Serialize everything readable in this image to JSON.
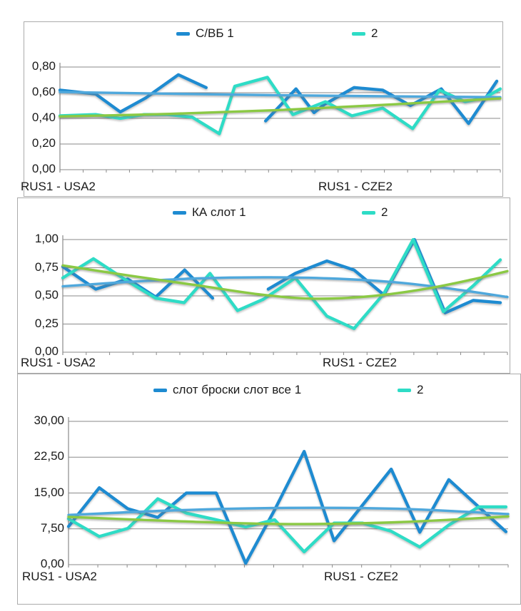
{
  "page": {
    "background": "#ffffff"
  },
  "colors": {
    "series1_blue": "#1E8BD1",
    "series2_cyan": "#2EDCC6",
    "trend1_lightblue": "#4FA8DC",
    "trend2_green": "#8BC944",
    "gridline": "#8A8A8A",
    "frame": "#ABABAB",
    "text": "#1A1A1A"
  },
  "chart_data": [
    {
      "type": "line",
      "legend": [
        "С/ВБ 1",
        "2"
      ],
      "x_group_labels": [
        "RUS1 - USA2",
        "RUS1 - CZE2"
      ],
      "y_ticks": [
        0,
        0.2,
        0.4,
        0.6,
        0.8
      ],
      "y_tick_labels": [
        "0,00",
        "0,20",
        "0,40",
        "0,60",
        "0,80"
      ],
      "ylim": [
        0,
        0.8
      ],
      "x_unit": "percent_of_plot_width",
      "grid": "horizontal",
      "legend_position": "top",
      "series": [
        {
          "name": "С/ВБ 1",
          "role": "data",
          "color_key": "series1_blue",
          "paths": [
            [
              [
                0,
                0.62
              ],
              [
                8.1,
                0.59
              ],
              [
                13.7,
                0.45
              ],
              [
                19.5,
                0.56
              ],
              [
                26.9,
                0.74
              ],
              [
                33.2,
                0.64
              ]
            ],
            [
              [
                46.7,
                0.38
              ],
              [
                53.6,
                0.63
              ],
              [
                57.7,
                0.445
              ],
              [
                60.1,
                0.51
              ],
              [
                66.8,
                0.64
              ],
              [
                73.3,
                0.62
              ],
              [
                79.6,
                0.5
              ],
              [
                86.6,
                0.63
              ],
              [
                92.8,
                0.36
              ],
              [
                99.2,
                0.69
              ]
            ]
          ]
        },
        {
          "name": "2",
          "role": "data",
          "color_key": "series2_cyan",
          "paths": [
            [
              [
                0,
                0.42
              ],
              [
                8.1,
                0.43
              ],
              [
                13.7,
                0.4
              ],
              [
                19.1,
                0.43
              ],
              [
                24.4,
                0.43
              ],
              [
                30.0,
                0.41
              ],
              [
                36.2,
                0.28
              ],
              [
                39.7,
                0.65
              ],
              [
                47.1,
                0.72
              ],
              [
                52.9,
                0.43
              ],
              [
                60.3,
                0.53
              ],
              [
                66.3,
                0.42
              ],
              [
                73.3,
                0.48
              ],
              [
                80.1,
                0.32
              ],
              [
                86.2,
                0.62
              ],
              [
                92.0,
                0.53
              ],
              [
                96.4,
                0.56
              ],
              [
                100,
                0.63
              ]
            ]
          ]
        },
        {
          "name": "trend-of-1",
          "role": "trend",
          "color_key": "trend1_lightblue",
          "paths": [
            [
              [
                0,
                0.605
              ],
              [
                25,
                0.592
              ],
              [
                50,
                0.58
              ],
              [
                75,
                0.572
              ],
              [
                100,
                0.565
              ]
            ]
          ]
        },
        {
          "name": "trend-of-2",
          "role": "trend",
          "color_key": "trend2_green",
          "paths": [
            [
              [
                0,
                0.415
              ],
              [
                25,
                0.435
              ],
              [
                50,
                0.465
              ],
              [
                75,
                0.508
              ],
              [
                100,
                0.555
              ]
            ]
          ]
        }
      ]
    },
    {
      "type": "line",
      "legend": [
        "КА слот 1",
        "2"
      ],
      "x_group_labels": [
        "RUS1 - USA2",
        "RUS1 - CZE2"
      ],
      "y_ticks": [
        0,
        0.25,
        0.5,
        0.75,
        1.0
      ],
      "y_tick_labels": [
        "0,00",
        "0,25",
        "0,50",
        "0,75",
        "1,00"
      ],
      "ylim": [
        0,
        1.0
      ],
      "x_unit": "percent_of_plot_width",
      "grid": "horizontal",
      "legend_position": "top",
      "series": [
        {
          "name": "КА слот 1",
          "role": "data",
          "color_key": "series1_blue",
          "paths": [
            [
              [
                0,
                0.76
              ],
              [
                7.4,
                0.56
              ],
              [
                14.6,
                0.65
              ],
              [
                20.9,
                0.49
              ],
              [
                27.4,
                0.73
              ],
              [
                33.7,
                0.48
              ]
            ],
            [
              [
                46.2,
                0.56
              ],
              [
                52.3,
                0.7
              ],
              [
                59.4,
                0.81
              ],
              [
                65.5,
                0.73
              ],
              [
                72.2,
                0.51
              ],
              [
                79.1,
                1.0
              ],
              [
                86.0,
                0.35
              ],
              [
                92.3,
                0.46
              ],
              [
                98.4,
                0.44
              ]
            ]
          ]
        },
        {
          "name": "2",
          "role": "data",
          "color_key": "series2_cyan",
          "paths": [
            [
              [
                0,
                0.66
              ],
              [
                6.9,
                0.83
              ],
              [
                14.6,
                0.63
              ],
              [
                20.9,
                0.48
              ],
              [
                27.3,
                0.44
              ],
              [
                33.1,
                0.7
              ],
              [
                39.3,
                0.37
              ],
              [
                45.1,
                0.47
              ],
              [
                52.3,
                0.66
              ],
              [
                59.4,
                0.32
              ],
              [
                65.5,
                0.21
              ],
              [
                72.2,
                0.52
              ],
              [
                78.8,
                1.0
              ],
              [
                85.6,
                0.36
              ],
              [
                92.3,
                0.59
              ],
              [
                98.4,
                0.82
              ]
            ]
          ]
        },
        {
          "name": "trend-of-1",
          "role": "trend",
          "color_key": "trend1_lightblue",
          "paths": [
            [
              [
                0,
                0.585
              ],
              [
                15,
                0.625
              ],
              [
                30,
                0.655
              ],
              [
                45,
                0.665
              ],
              [
                60,
                0.655
              ],
              [
                75,
                0.62
              ],
              [
                88,
                0.56
              ],
              [
                100,
                0.49
              ]
            ]
          ]
        },
        {
          "name": "trend-of-2",
          "role": "trend",
          "color_key": "trend2_green",
          "paths": [
            [
              [
                0,
                0.77
              ],
              [
                15,
                0.68
              ],
              [
                30,
                0.595
              ],
              [
                45,
                0.51
              ],
              [
                57,
                0.475
              ],
              [
                70,
                0.5
              ],
              [
                82,
                0.565
              ],
              [
                92,
                0.645
              ],
              [
                100,
                0.72
              ]
            ]
          ]
        }
      ]
    },
    {
      "type": "line",
      "legend": [
        "слот броски слот все 1",
        "2"
      ],
      "x_group_labels": [
        "RUS1 - USA2",
        "RUS1 - CZE2"
      ],
      "y_ticks": [
        0,
        7.5,
        15,
        22.5,
        30
      ],
      "y_tick_labels": [
        "0,00",
        "7,50",
        "15,00",
        "22,50",
        "30,00"
      ],
      "ylim": [
        0,
        30
      ],
      "x_unit": "percent_of_plot_width",
      "grid": "horizontal",
      "legend_position": "top",
      "series": [
        {
          "name": "слот броски слот все 1",
          "role": "data",
          "color_key": "series1_blue",
          "paths": [
            [
              [
                0,
                8.0
              ],
              [
                7.0,
                16.1
              ],
              [
                13.5,
                11.7
              ],
              [
                20.3,
                9.9
              ],
              [
                26.8,
                15.0
              ],
              [
                33.6,
                15.0
              ],
              [
                40.3,
                0.3
              ],
              [
                46.9,
                11.5
              ],
              [
                53.6,
                23.7
              ],
              [
                60.4,
                5.0
              ],
              [
                66.9,
                12.5
              ],
              [
                73.4,
                20.0
              ],
              [
                79.9,
                6.8
              ],
              [
                86.5,
                17.8
              ],
              [
                99.5,
                6.9
              ]
            ]
          ]
        },
        {
          "name": "2",
          "role": "data",
          "color_key": "series2_cyan",
          "paths": [
            [
              [
                0,
                9.6
              ],
              [
                7.0,
                5.9
              ],
              [
                13.5,
                7.6
              ],
              [
                20.3,
                13.8
              ],
              [
                26.8,
                10.8
              ],
              [
                33.6,
                9.4
              ],
              [
                40.3,
                7.9
              ],
              [
                46.9,
                9.4
              ],
              [
                53.6,
                2.7
              ],
              [
                60.4,
                8.7
              ],
              [
                66.9,
                8.7
              ],
              [
                73.4,
                7.0
              ],
              [
                79.9,
                3.7
              ],
              [
                86.5,
                8.3
              ],
              [
                93.3,
                12.1
              ],
              [
                99.5,
                12.1
              ]
            ]
          ]
        },
        {
          "name": "trend-of-1",
          "role": "trend",
          "color_key": "trend1_lightblue",
          "paths": [
            [
              [
                0,
                10.4
              ],
              [
                25,
                11.4
              ],
              [
                50,
                11.9
              ],
              [
                75,
                11.7
              ],
              [
                100,
                10.6
              ]
            ]
          ]
        },
        {
          "name": "trend-of-2",
          "role": "trend",
          "color_key": "trend2_green",
          "paths": [
            [
              [
                0,
                10.0
              ],
              [
                25,
                9.1
              ],
              [
                50,
                8.5
              ],
              [
                75,
                8.9
              ],
              [
                100,
                10.1
              ]
            ]
          ]
        }
      ]
    }
  ]
}
